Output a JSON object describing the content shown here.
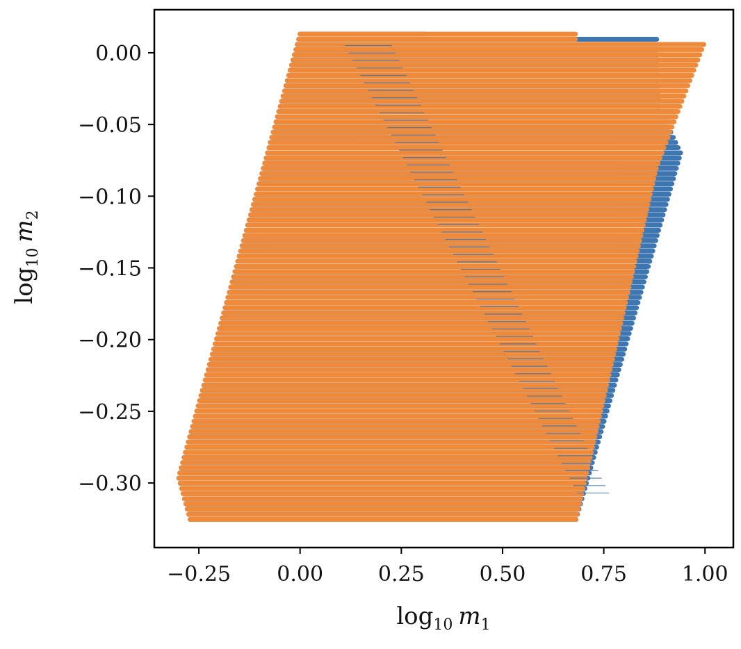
{
  "chart_data": {
    "type": "scatter",
    "xlabel": {
      "base": "log",
      "sub": "10",
      "var": "m",
      "var_sub": "1"
    },
    "ylabel": {
      "base": "log",
      "sub": "10",
      "var": "m",
      "var_sub": "2"
    },
    "xlim": [
      -0.36,
      1.07
    ],
    "ylim": [
      -0.345,
      0.03
    ],
    "xticks": [
      -0.25,
      0.0,
      0.25,
      0.5,
      0.75,
      1.0
    ],
    "xtick_labels": [
      "−0.25",
      "0.00",
      "0.25",
      "0.50",
      "0.75",
      "1.00"
    ],
    "yticks": [
      0.0,
      -0.05,
      -0.1,
      -0.15,
      -0.2,
      -0.25,
      -0.3
    ],
    "ytick_labels": [
      "0.00",
      "−0.05",
      "−0.10",
      "−0.15",
      "−0.20",
      "−0.25",
      "−0.30"
    ],
    "grid": false,
    "legend": false,
    "y_range_of_points": [
      -0.327,
      0.013
    ],
    "series": [
      {
        "color": "#3d76b1",
        "left_edge": [
          [
            0.0,
            0.013
          ],
          [
            -0.3,
            -0.296
          ],
          [
            -0.27,
            -0.327
          ]
        ],
        "right_edge": [
          [
            0.31,
            0.013
          ],
          [
            0.88,
            0.013
          ],
          [
            0.89,
            -0.04
          ],
          [
            0.94,
            -0.07
          ],
          [
            0.68,
            -0.327
          ]
        ]
      },
      {
        "color": "#ee8a3a",
        "left_edge": [
          [
            0.0,
            0.013
          ],
          [
            -0.3,
            -0.296
          ],
          [
            -0.27,
            -0.327
          ]
        ],
        "right_edge": [
          [
            1.0,
            0.008
          ],
          [
            0.88,
            -0.08
          ],
          [
            0.68,
            -0.327
          ]
        ]
      }
    ]
  }
}
